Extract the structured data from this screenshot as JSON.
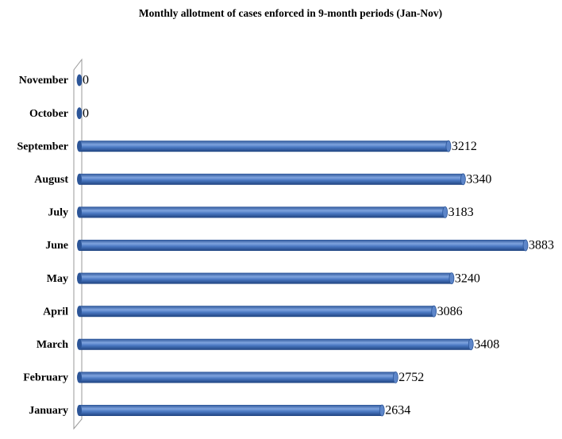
{
  "chart_data": {
    "type": "bar",
    "orientation": "horizontal",
    "title": "Monthly allotment of cases enforced in 9-month periods (Jan-Nov)",
    "categories": [
      "January",
      "February",
      "March",
      "April",
      "May",
      "June",
      "July",
      "August",
      "September",
      "October",
      "November"
    ],
    "values": [
      2634,
      2752,
      3408,
      3086,
      3240,
      3883,
      3183,
      3340,
      3212,
      0,
      0
    ],
    "color": "#4a78c2"
  }
}
